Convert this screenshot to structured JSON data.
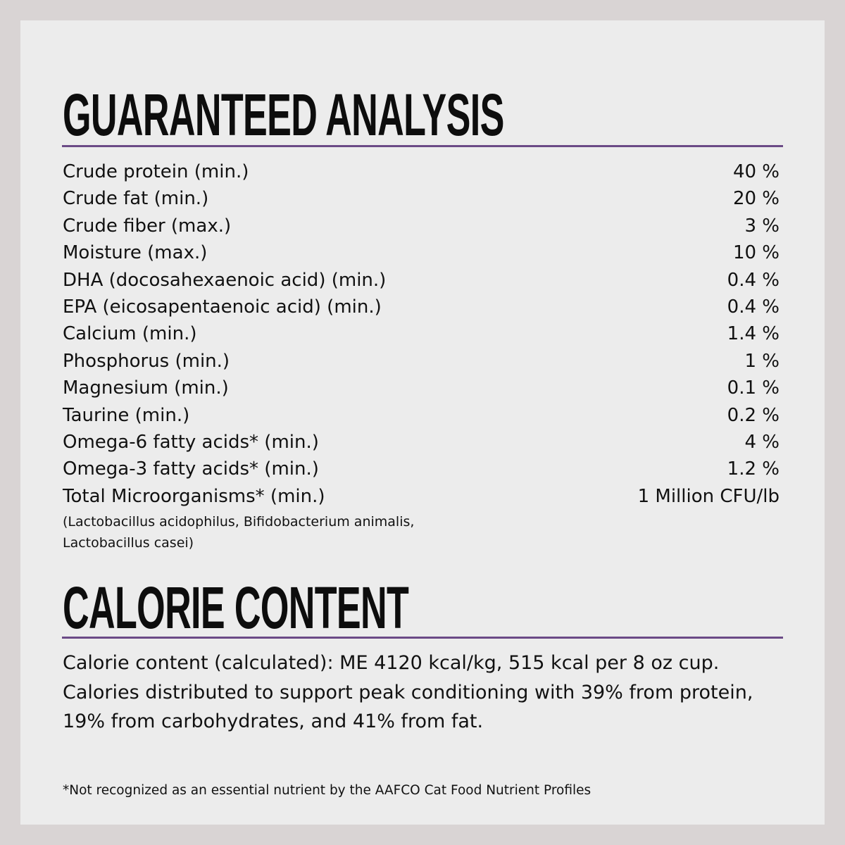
{
  "guaranteed_analysis": {
    "title": "GUARANTEED ANALYSIS",
    "rows": [
      {
        "name": "Crude protein (min.)",
        "value": "40 %"
      },
      {
        "name": "Crude fat (min.)",
        "value": "20 %"
      },
      {
        "name": "Crude fiber (max.)",
        "value": "3 %"
      },
      {
        "name": "Moisture (max.)",
        "value": "10 %"
      },
      {
        "name": "DHA (docosahexaenoic acid) (min.)",
        "value": "0.4 %"
      },
      {
        "name": "EPA (eicosapentaenoic acid) (min.)",
        "value": "0.4 %"
      },
      {
        "name": "Calcium (min.)",
        "value": "1.4 %"
      },
      {
        "name": "Phosphorus (min.)",
        "value": "1 %"
      },
      {
        "name": "Magnesium (min.)",
        "value": "0.1 %"
      },
      {
        "name": "Taurine (min.)",
        "value": "0.2 %"
      },
      {
        "name": "Omega-6 fatty acids* (min.)",
        "value": "4 %"
      },
      {
        "name": "Omega-3 fatty acids* (min.)",
        "value": "1.2 %"
      },
      {
        "name": "Total Microorganisms* (min.)",
        "value": "1 Million CFU/lb"
      }
    ],
    "microorganisms_note_line1": "(Lactobacillus acidophilus, Bifidobacterium animalis,",
    "microorganisms_note_line2": "Lactobacillus casei)"
  },
  "calorie_content": {
    "title": "CALORIE CONTENT",
    "line1": "Calorie content (calculated): ME 4120 kcal/kg, 515 kcal per 8 oz cup.",
    "line2": "Calories distributed to support peak conditioning with 39% from protein,",
    "line3": "19% from carbohydrates, and 41% from fat."
  },
  "footnote": "*Not recognized as an essential nutrient by the AAFCO Cat Food Nutrient Profiles",
  "colors": {
    "background_border": "#d9d4d4",
    "panel": "#ececec",
    "rule_accent": "#6b4a86",
    "text": "#111111"
  }
}
